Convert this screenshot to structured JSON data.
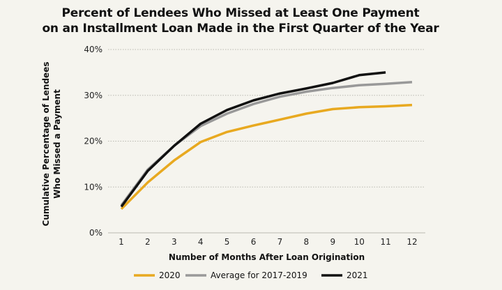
{
  "chart_data": {
    "type": "line",
    "title": [
      "Percent of Lendees Who Missed at Least One Payment",
      "on an Installment Loan Made in the First Quarter of the Year"
    ],
    "xlabel": "Number of Months After Loan Origination",
    "ylabel": [
      "Cumulative Percentage of Lendees",
      "Who Missed a Payment"
    ],
    "x": [
      1,
      2,
      3,
      4,
      5,
      6,
      7,
      8,
      9,
      10,
      11,
      12
    ],
    "xlim": [
      0.5,
      12.5
    ],
    "ylim": [
      0,
      40
    ],
    "yticks": [
      0,
      10,
      20,
      30,
      40
    ],
    "ytick_labels": [
      "0%",
      "10%",
      "20%",
      "30%",
      "40%"
    ],
    "xtick_labels": [
      "1",
      "2",
      "3",
      "4",
      "5",
      "6",
      "7",
      "8",
      "9",
      "10",
      "11",
      "12"
    ],
    "grid": "horizontal dotted",
    "legend": "bottom",
    "series": [
      {
        "name": "2020",
        "color": "#e8a920",
        "values": [
          5.2,
          11.0,
          15.8,
          19.8,
          22.0,
          23.4,
          24.7,
          26.0,
          27.0,
          27.4,
          27.6,
          27.9
        ]
      },
      {
        "name": "Average for 2017-2019",
        "color": "#999999",
        "values": [
          6.0,
          13.8,
          19.0,
          23.3,
          26.0,
          28.1,
          29.7,
          30.8,
          31.6,
          32.2,
          32.5,
          32.9
        ]
      },
      {
        "name": "2021",
        "color": "#111111",
        "values": [
          5.7,
          13.5,
          19.0,
          23.8,
          26.8,
          28.9,
          30.4,
          31.5,
          32.7,
          34.4,
          35.0,
          null
        ]
      }
    ]
  }
}
